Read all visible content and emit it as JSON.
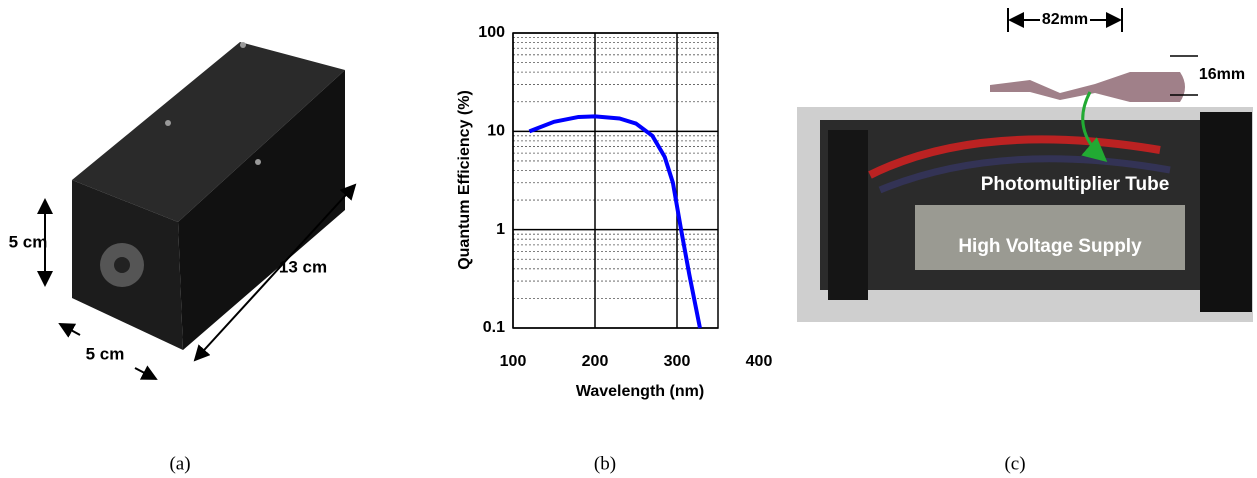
{
  "panel_a": {
    "height_label": "5 cm",
    "width_label": "5 cm",
    "length_label": "13 cm",
    "caption": "(a)"
  },
  "chart_data": {
    "type": "line",
    "x_label": "Wavelength (nm)",
    "y_label": "Quantum Efficiency (%)",
    "x": [
      120,
      150,
      180,
      200,
      230,
      250,
      270,
      285,
      295,
      305,
      315,
      328
    ],
    "values": [
      10,
      12.5,
      14,
      14.2,
      13.5,
      12,
      9,
      5.5,
      3,
      1,
      0.35,
      0.1
    ],
    "color": "#0000ff",
    "xlim": [
      100,
      350
    ],
    "xticks": [
      100,
      200,
      300,
      400
    ],
    "ylim": [
      0.1,
      100
    ],
    "yticks": [
      0.1,
      1,
      10,
      100
    ],
    "yscale": "log",
    "grid": true,
    "caption": "(b)"
  },
  "panel_c": {
    "length_label": "82mm",
    "diameter_label": "16mm",
    "tube_label": "Photomultiplier Tube",
    "supply_label": "High Voltage Supply",
    "caption": "(c)"
  }
}
